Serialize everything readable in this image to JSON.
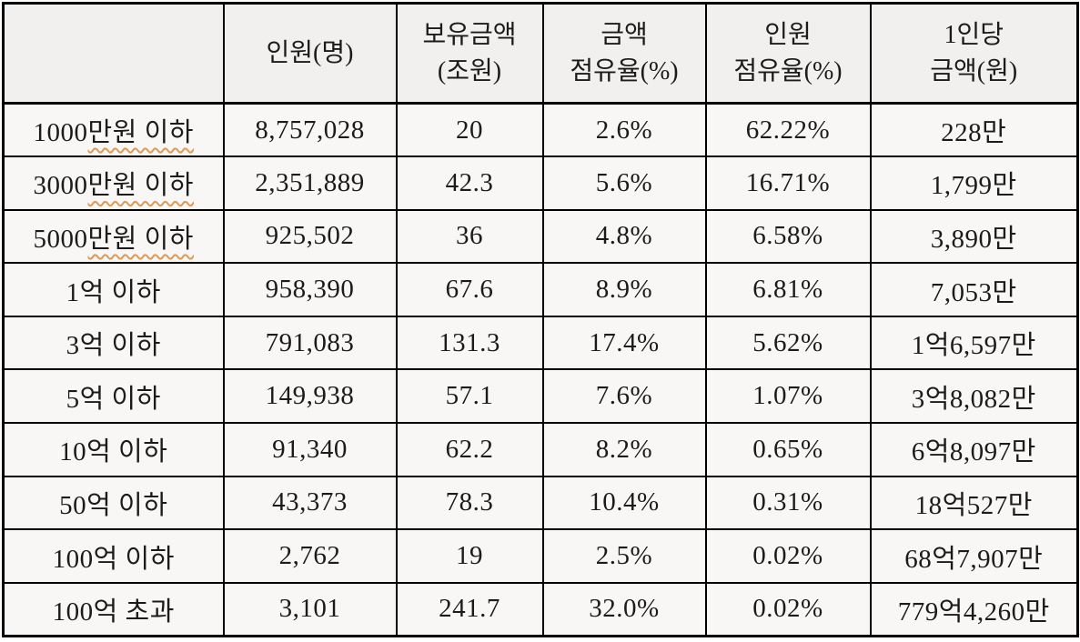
{
  "colors": {
    "border": "#000000",
    "header_bg": "#f1f0ee",
    "body_bg": "#f8f7f5",
    "text": "#1b1b1b",
    "spellcheck_squiggle": "#dd9a55"
  },
  "table": {
    "columns": [
      "",
      "인원(명)",
      "보유금액\n(조원)",
      "금액\n점유율(%)",
      "인원\n점유율(%)",
      "1인당\n금액(원)"
    ],
    "rows": [
      {
        "label": "1000만원 이하",
        "label_parts": [
          "1000",
          "만원 이하"
        ],
        "misspelled": true,
        "values": [
          "8,757,028",
          "20",
          "2.6%",
          "62.22%",
          "228만"
        ]
      },
      {
        "label": "3000만원 이하",
        "label_parts": [
          "3000",
          "만원 이하"
        ],
        "misspelled": true,
        "values": [
          "2,351,889",
          "42.3",
          "5.6%",
          "16.71%",
          "1,799만"
        ]
      },
      {
        "label": "5000만원 이하",
        "label_parts": [
          "5000",
          "만원 이하"
        ],
        "misspelled": true,
        "values": [
          "925,502",
          "36",
          "4.8%",
          "6.58%",
          "3,890만"
        ]
      },
      {
        "label": "1억 이하",
        "values": [
          "958,390",
          "67.6",
          "8.9%",
          "6.81%",
          "7,053만"
        ]
      },
      {
        "label": "3억 이하",
        "values": [
          "791,083",
          "131.3",
          "17.4%",
          "5.62%",
          "1억6,597만"
        ]
      },
      {
        "label": "5억 이하",
        "values": [
          "149,938",
          "57.1",
          "7.6%",
          "1.07%",
          "3억8,082만"
        ]
      },
      {
        "label": "10억 이하",
        "values": [
          "91,340",
          "62.2",
          "8.2%",
          "0.65%",
          "6억8,097만"
        ]
      },
      {
        "label": "50억 이하",
        "values": [
          "43,373",
          "78.3",
          "10.4%",
          "0.31%",
          "18억527만"
        ]
      },
      {
        "label": "100억 이하",
        "values": [
          "2,762",
          "19",
          "2.5%",
          "0.02%",
          "68억7,907만"
        ]
      },
      {
        "label": "100억 초과",
        "values": [
          "3,101",
          "241.7",
          "32.0%",
          "0.02%",
          "779억4,260만"
        ]
      }
    ]
  }
}
